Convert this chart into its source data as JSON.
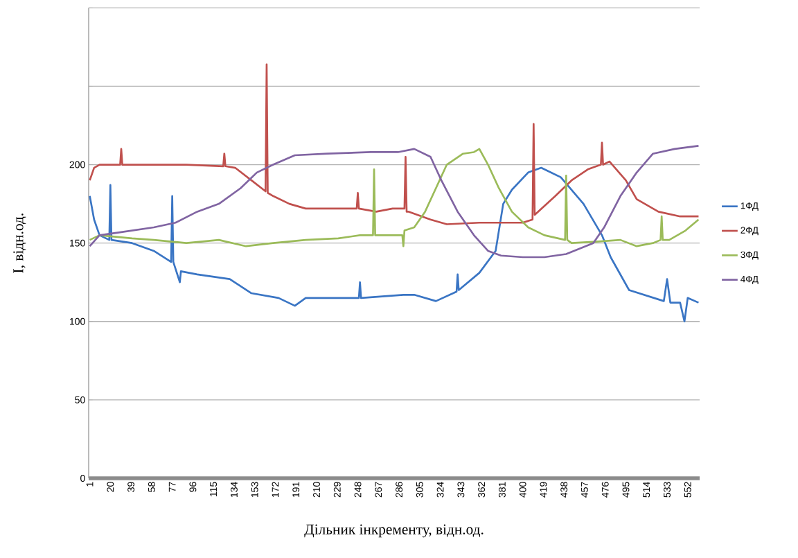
{
  "chart_data": {
    "type": "line",
    "xlabel": "Дільник інкременту, відн.од.",
    "ylabel": "І, відн.од.",
    "xlim": [
      0,
      563
    ],
    "ylim": [
      0,
      300
    ],
    "xticks": [
      1,
      20,
      39,
      58,
      77,
      96,
      115,
      134,
      153,
      172,
      191,
      210,
      229,
      248,
      267,
      286,
      305,
      324,
      343,
      362,
      381,
      400,
      419,
      438,
      457,
      476,
      495,
      514,
      533,
      552
    ],
    "yticks": [
      0,
      50,
      100,
      150,
      200,
      {
        "value": 250,
        "label": null
      },
      {
        "value": 300,
        "label": null
      }
    ],
    "grid": "y",
    "legend": "right",
    "marker": "none",
    "line_style": "solid",
    "series": [
      {
        "name": "1ФД",
        "color": "#3a75c4",
        "x": [
          1,
          5,
          10,
          19,
          20,
          21,
          40,
          60,
          76,
          77,
          78,
          84,
          85,
          100,
          130,
          150,
          175,
          190,
          200,
          249,
          250,
          251,
          290,
          300,
          320,
          339,
          340,
          341,
          360,
          375,
          382,
          390,
          405,
          417,
          435,
          456,
          473,
          481,
          498,
          530,
          533,
          536,
          545,
          549,
          552,
          562
        ],
        "values": [
          180,
          165,
          155,
          152,
          187,
          152,
          150,
          145,
          138,
          180,
          138,
          125,
          132,
          130,
          127,
          118,
          115,
          110,
          115,
          115,
          125,
          115,
          117,
          117,
          113,
          119,
          130,
          120,
          131,
          145,
          175,
          184,
          195,
          198,
          192,
          175,
          155,
          141,
          120,
          113,
          127,
          112,
          112,
          100,
          115,
          112
        ]
      },
      {
        "name": "2ФД",
        "color": "#c0504d",
        "x": [
          1,
          5,
          10,
          29,
          30,
          31,
          60,
          90,
          124,
          125,
          126,
          135,
          150,
          163,
          164,
          165,
          170,
          185,
          200,
          247,
          248,
          249,
          265,
          280,
          291,
          292,
          293,
          295,
          315,
          330,
          360,
          400,
          409,
          410,
          411,
          430,
          445,
          460,
          472,
          473,
          474,
          480,
          495,
          505,
          525,
          545,
          562
        ],
        "values": [
          190,
          198,
          200,
          200,
          210,
          200,
          200,
          200,
          199,
          207,
          199,
          198,
          190,
          183,
          264,
          182,
          180,
          175,
          172,
          172,
          182,
          172,
          170,
          172,
          172,
          205,
          170,
          170,
          165,
          162,
          163,
          163,
          165,
          226,
          168,
          180,
          190,
          197,
          200,
          214,
          200,
          202,
          190,
          178,
          170,
          167,
          167
        ]
      },
      {
        "name": "3ФД",
        "color": "#9bbb59",
        "x": [
          1,
          10,
          40,
          60,
          90,
          120,
          145,
          170,
          200,
          230,
          250,
          262,
          263,
          264,
          270,
          289,
          290,
          291,
          300,
          310,
          320,
          330,
          345,
          355,
          360,
          368,
          378,
          390,
          405,
          420,
          439,
          440,
          441,
          445,
          470,
          490,
          505,
          520,
          527,
          528,
          529,
          535,
          550,
          562
        ],
        "values": [
          152,
          155,
          153,
          152,
          150,
          152,
          148,
          150,
          152,
          153,
          155,
          155,
          197,
          155,
          155,
          155,
          148,
          158,
          160,
          170,
          185,
          200,
          207,
          208,
          210,
          200,
          185,
          170,
          160,
          155,
          152,
          193,
          152,
          150,
          151,
          152,
          148,
          150,
          152,
          167,
          152,
          152,
          158,
          165
        ]
      },
      {
        "name": "4ФД",
        "color": "#8064a2",
        "x": [
          1,
          10,
          30,
          60,
          80,
          100,
          120,
          140,
          155,
          170,
          190,
          220,
          260,
          285,
          300,
          315,
          325,
          340,
          355,
          368,
          380,
          400,
          420,
          440,
          465,
          475,
          490,
          505,
          520,
          540,
          562
        ],
        "values": [
          148,
          155,
          157,
          160,
          163,
          170,
          175,
          185,
          195,
          200,
          206,
          207,
          208,
          208,
          210,
          205,
          190,
          170,
          155,
          145,
          142,
          141,
          141,
          143,
          150,
          160,
          180,
          195,
          207,
          210,
          212
        ]
      }
    ]
  }
}
